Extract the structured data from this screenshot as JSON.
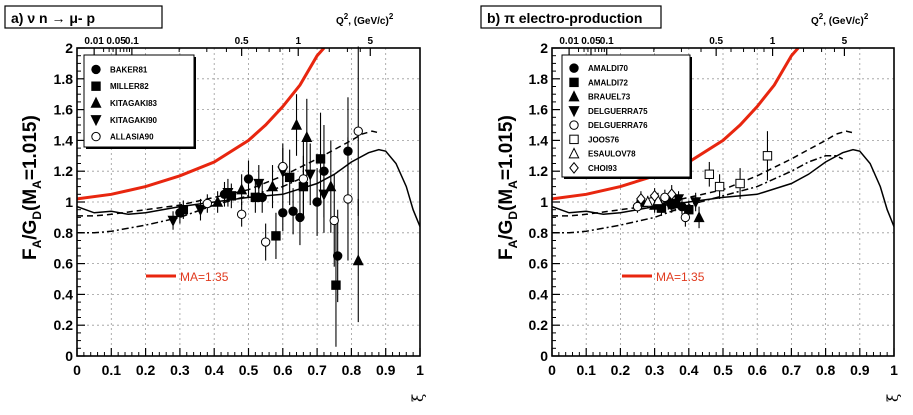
{
  "figure": {
    "colors": {
      "axis": "#000000",
      "grid": "#9a9a9a",
      "red_curve": "#e8260f",
      "ma_text": "#e03a1e"
    }
  },
  "chart_data": [
    {
      "type": "scatter",
      "panel": "a",
      "title": "a) ν n → μ- p",
      "ylabel": "F_A/G_D(M_A=1.015)",
      "ylabel_parts": {
        "main": "F",
        "sub1": "A",
        "mid": "/G",
        "sub2": "D",
        "open": "(M",
        "sub3": "A",
        "close": "=1.015)"
      },
      "xlabel": "ξ",
      "top_axis_label": {
        "text": "Q",
        "sup1": "2",
        "units": ", (GeV/c)",
        "sup2": "2"
      },
      "xlim": [
        0,
        1
      ],
      "ylim": [
        0,
        2
      ],
      "x_ticks": [
        "0",
        "0.1",
        "0.2",
        "0.3",
        "0.4",
        "0.5",
        "0.6",
        "0.7",
        "0.8",
        "0.9",
        "1"
      ],
      "y_ticks": [
        "0",
        "0.2",
        "0.4",
        "0.6",
        "0.8",
        "1",
        "1.2",
        "1.4",
        "1.6",
        "1.8",
        "2"
      ],
      "top_ticks": [
        {
          "label": "0.01",
          "xi": 0.05
        },
        {
          "label": "0.05",
          "xi": 0.114
        },
        {
          "label": "0.1",
          "xi": 0.16
        },
        {
          "label": "0.5",
          "xi": 0.48
        },
        {
          "label": "1",
          "xi": 0.645
        },
        {
          "label": "5",
          "xi": 0.855
        }
      ],
      "ma_annotation": "MA=1.35",
      "curves": {
        "red": [
          [
            0,
            1.02
          ],
          [
            0.1,
            1.05
          ],
          [
            0.2,
            1.1
          ],
          [
            0.3,
            1.17
          ],
          [
            0.4,
            1.26
          ],
          [
            0.5,
            1.4
          ],
          [
            0.55,
            1.5
          ],
          [
            0.6,
            1.62
          ],
          [
            0.65,
            1.76
          ],
          [
            0.7,
            1.95
          ],
          [
            0.72,
            2.0
          ]
        ],
        "solid": [
          [
            0,
            0.97
          ],
          [
            0.05,
            0.93
          ],
          [
            0.1,
            0.94
          ],
          [
            0.15,
            0.92
          ],
          [
            0.2,
            0.93
          ],
          [
            0.3,
            0.97
          ],
          [
            0.4,
            1.0
          ],
          [
            0.5,
            1.03
          ],
          [
            0.6,
            1.05
          ],
          [
            0.7,
            1.12
          ],
          [
            0.75,
            1.18
          ],
          [
            0.8,
            1.26
          ],
          [
            0.85,
            1.32
          ],
          [
            0.88,
            1.34
          ],
          [
            0.9,
            1.33
          ],
          [
            0.93,
            1.25
          ],
          [
            0.96,
            1.1
          ],
          [
            0.98,
            0.95
          ],
          [
            1.0,
            0.84
          ]
        ],
        "dashed": [
          [
            0,
            0.91
          ],
          [
            0.05,
            0.91
          ],
          [
            0.1,
            0.92
          ],
          [
            0.2,
            0.95
          ],
          [
            0.3,
            0.98
          ],
          [
            0.4,
            1.03
          ],
          [
            0.5,
            1.08
          ],
          [
            0.6,
            1.17
          ],
          [
            0.7,
            1.28
          ],
          [
            0.75,
            1.34
          ],
          [
            0.8,
            1.4
          ],
          [
            0.83,
            1.44
          ],
          [
            0.86,
            1.46
          ],
          [
            0.88,
            1.45
          ]
        ],
        "dashdot": [
          [
            0,
            0.8
          ],
          [
            0.05,
            0.8
          ],
          [
            0.1,
            0.81
          ],
          [
            0.2,
            0.85
          ],
          [
            0.3,
            0.9
          ],
          [
            0.4,
            0.98
          ],
          [
            0.5,
            1.04
          ],
          [
            0.6,
            1.1
          ],
          [
            0.65,
            1.15
          ]
        ]
      },
      "legend": [
        {
          "label": "BAKER81",
          "marker": "circle"
        },
        {
          "label": "MILLER82",
          "marker": "square"
        },
        {
          "label": "KITAGAKI83",
          "marker": "triangle-up"
        },
        {
          "label": "KITAGAKI90",
          "marker": "triangle-down"
        },
        {
          "label": "ALLASIA90",
          "marker": "circle-open"
        }
      ],
      "series": [
        {
          "name": "BAKER81",
          "marker": "circle",
          "points": [
            {
              "x": 0.3,
              "y": 0.93,
              "err": 0.07
            },
            {
              "x": 0.43,
              "y": 1.05,
              "err": 0.08
            },
            {
              "x": 0.5,
              "y": 1.15,
              "err": 0.12
            },
            {
              "x": 0.54,
              "y": 1.03,
              "err": 0.1
            },
            {
              "x": 0.6,
              "y": 0.93,
              "err": 0.12
            },
            {
              "x": 0.63,
              "y": 0.94,
              "err": 0.15
            },
            {
              "x": 0.65,
              "y": 0.9,
              "err": 0.18
            },
            {
              "x": 0.7,
              "y": 1.0,
              "err": 0.22
            },
            {
              "x": 0.72,
              "y": 1.2,
              "err": 0.3
            },
            {
              "x": 0.76,
              "y": 0.65,
              "err": 0.3
            },
            {
              "x": 0.79,
              "y": 1.33,
              "err": 0.35
            }
          ]
        },
        {
          "name": "MILLER82",
          "marker": "square",
          "points": [
            {
              "x": 0.31,
              "y": 0.95,
              "err": 0.06
            },
            {
              "x": 0.45,
              "y": 1.04,
              "err": 0.08
            },
            {
              "x": 0.52,
              "y": 1.03,
              "err": 0.1
            },
            {
              "x": 0.58,
              "y": 0.78,
              "err": 0.15
            },
            {
              "x": 0.62,
              "y": 1.16,
              "err": 0.18
            },
            {
              "x": 0.66,
              "y": 1.1,
              "err": 0.2
            },
            {
              "x": 0.71,
              "y": 1.28,
              "err": 0.3
            },
            {
              "x": 0.755,
              "y": 0.46,
              "err": 0.4
            }
          ]
        },
        {
          "name": "KITAGAKI83",
          "marker": "triangle-up",
          "points": [
            {
              "x": 0.41,
              "y": 1.0,
              "err": 0.07
            },
            {
              "x": 0.48,
              "y": 1.08,
              "err": 0.1
            },
            {
              "x": 0.57,
              "y": 1.1,
              "err": 0.14
            },
            {
              "x": 0.64,
              "y": 1.5,
              "err": 0.2
            },
            {
              "x": 0.67,
              "y": 1.42,
              "err": 0.25
            },
            {
              "x": 0.74,
              "y": 1.1,
              "err": 0.3
            },
            {
              "x": 0.82,
              "y": 0.62,
              "err": 0.4
            }
          ]
        },
        {
          "name": "KITAGAKI90",
          "marker": "triangle-down",
          "points": [
            {
              "x": 0.28,
              "y": 0.88,
              "err": 0.06
            },
            {
              "x": 0.36,
              "y": 0.95,
              "err": 0.07
            },
            {
              "x": 0.44,
              "y": 1.06,
              "err": 0.09
            },
            {
              "x": 0.53,
              "y": 1.12,
              "err": 0.12
            },
            {
              "x": 0.6,
              "y": 1.2,
              "err": 0.15
            },
            {
              "x": 0.68,
              "y": 1.18,
              "err": 0.2
            },
            {
              "x": 0.72,
              "y": 1.05,
              "err": 0.25
            }
          ]
        },
        {
          "name": "ALLASIA90",
          "marker": "circle-open",
          "points": [
            {
              "x": 0.38,
              "y": 0.99,
              "err": 0.06
            },
            {
              "x": 0.48,
              "y": 0.92,
              "err": 0.08
            },
            {
              "x": 0.55,
              "y": 0.74,
              "err": 0.12
            },
            {
              "x": 0.6,
              "y": 1.23,
              "err": 0.15
            },
            {
              "x": 0.66,
              "y": 1.15,
              "err": 0.25
            },
            {
              "x": 0.75,
              "y": 0.88,
              "err": 0.3
            },
            {
              "x": 0.79,
              "y": 1.02,
              "err": 0.4
            },
            {
              "x": 0.82,
              "y": 1.46,
              "err": 0.55
            }
          ]
        }
      ]
    },
    {
      "type": "scatter",
      "panel": "b",
      "title": "b) π electro-production",
      "ylabel": "F_A/G_D(M_A=1.015)",
      "ylabel_parts": {
        "main": "F",
        "sub1": "A",
        "mid": "/G",
        "sub2": "D",
        "open": "(M",
        "sub3": "A",
        "close": "=1.015)"
      },
      "xlabel": "ξ",
      "top_axis_label": {
        "text": "Q",
        "sup1": "2",
        "units": ", (GeV/c)",
        "sup2": "2"
      },
      "xlim": [
        0,
        1
      ],
      "ylim": [
        0,
        2
      ],
      "x_ticks": [
        "0",
        "0.1",
        "0.2",
        "0.3",
        "0.4",
        "0.5",
        "0.6",
        "0.7",
        "0.8",
        "0.9",
        "1"
      ],
      "y_ticks": [
        "0",
        "0.2",
        "0.4",
        "0.6",
        "0.8",
        "1",
        "1.2",
        "1.4",
        "1.6",
        "1.8",
        "2"
      ],
      "top_ticks": [
        {
          "label": "0.01",
          "xi": 0.05
        },
        {
          "label": "0.05",
          "xi": 0.114
        },
        {
          "label": "0.1",
          "xi": 0.16
        },
        {
          "label": "0.5",
          "xi": 0.48
        },
        {
          "label": "1",
          "xi": 0.645
        },
        {
          "label": "5",
          "xi": 0.855
        }
      ],
      "ma_annotation": "MA=1.35",
      "curves": {
        "red": [
          [
            0,
            1.02
          ],
          [
            0.1,
            1.05
          ],
          [
            0.2,
            1.1
          ],
          [
            0.3,
            1.17
          ],
          [
            0.4,
            1.26
          ],
          [
            0.5,
            1.4
          ],
          [
            0.55,
            1.5
          ],
          [
            0.6,
            1.62
          ],
          [
            0.65,
            1.76
          ],
          [
            0.7,
            1.95
          ],
          [
            0.72,
            2.0
          ]
        ],
        "solid": [
          [
            0,
            0.97
          ],
          [
            0.05,
            0.93
          ],
          [
            0.1,
            0.94
          ],
          [
            0.15,
            0.92
          ],
          [
            0.2,
            0.93
          ],
          [
            0.3,
            0.97
          ],
          [
            0.4,
            1.0
          ],
          [
            0.5,
            1.03
          ],
          [
            0.6,
            1.05
          ],
          [
            0.7,
            1.12
          ],
          [
            0.75,
            1.18
          ],
          [
            0.8,
            1.26
          ],
          [
            0.85,
            1.32
          ],
          [
            0.88,
            1.34
          ],
          [
            0.9,
            1.33
          ],
          [
            0.93,
            1.25
          ],
          [
            0.96,
            1.1
          ],
          [
            0.98,
            0.95
          ],
          [
            1.0,
            0.84
          ]
        ],
        "dashed": [
          [
            0,
            0.91
          ],
          [
            0.05,
            0.91
          ],
          [
            0.1,
            0.92
          ],
          [
            0.2,
            0.95
          ],
          [
            0.3,
            0.98
          ],
          [
            0.4,
            1.03
          ],
          [
            0.5,
            1.08
          ],
          [
            0.6,
            1.17
          ],
          [
            0.7,
            1.28
          ],
          [
            0.75,
            1.34
          ],
          [
            0.8,
            1.4
          ],
          [
            0.83,
            1.44
          ],
          [
            0.86,
            1.46
          ],
          [
            0.88,
            1.45
          ]
        ],
        "dashdot": [
          [
            0,
            0.8
          ],
          [
            0.05,
            0.8
          ],
          [
            0.1,
            0.81
          ],
          [
            0.2,
            0.85
          ],
          [
            0.3,
            0.9
          ],
          [
            0.4,
            0.98
          ],
          [
            0.5,
            1.04
          ],
          [
            0.6,
            1.1
          ],
          [
            0.7,
            1.2
          ],
          [
            0.75,
            1.26
          ],
          [
            0.8,
            1.3
          ],
          [
            0.83,
            1.3
          ],
          [
            0.85,
            1.28
          ]
        ]
      },
      "legend": [
        {
          "label": "AMALDI70",
          "marker": "circle"
        },
        {
          "label": "AMALDI72",
          "marker": "square"
        },
        {
          "label": "BRAUEL73",
          "marker": "triangle-up"
        },
        {
          "label": "DELGUERRA75",
          "marker": "triangle-down"
        },
        {
          "label": "DELGUERRA76",
          "marker": "circle-open"
        },
        {
          "label": "JOOS76",
          "marker": "square-open"
        },
        {
          "label": "ESAULOV78",
          "marker": "triangle-open"
        },
        {
          "label": "CHOI93",
          "marker": "diamond-open"
        }
      ],
      "series": [
        {
          "name": "AMALDI70",
          "marker": "circle",
          "points": [
            {
              "x": 0.26,
              "y": 1.0,
              "err": 0.05
            },
            {
              "x": 0.3,
              "y": 0.99,
              "err": 0.05
            },
            {
              "x": 0.35,
              "y": 0.98,
              "err": 0.05
            },
            {
              "x": 0.38,
              "y": 0.97,
              "err": 0.05
            }
          ]
        },
        {
          "name": "AMALDI72",
          "marker": "square",
          "points": [
            {
              "x": 0.32,
              "y": 0.96,
              "err": 0.05
            },
            {
              "x": 0.36,
              "y": 0.99,
              "err": 0.05
            },
            {
              "x": 0.4,
              "y": 0.95,
              "err": 0.06
            }
          ]
        },
        {
          "name": "BRAUEL73",
          "marker": "triangle-up",
          "points": [
            {
              "x": 0.3,
              "y": 0.98,
              "err": 0.05
            },
            {
              "x": 0.43,
              "y": 0.9,
              "err": 0.07
            }
          ]
        },
        {
          "name": "DELGUERRA75",
          "marker": "triangle-down",
          "points": [
            {
              "x": 0.34,
              "y": 1.0,
              "err": 0.05
            },
            {
              "x": 0.37,
              "y": 1.02,
              "err": 0.05
            },
            {
              "x": 0.42,
              "y": 1.0,
              "err": 0.06
            }
          ]
        },
        {
          "name": "DELGUERRA76",
          "marker": "circle-open",
          "points": [
            {
              "x": 0.25,
              "y": 0.97,
              "err": 0.04
            },
            {
              "x": 0.29,
              "y": 1.0,
              "err": 0.05
            },
            {
              "x": 0.33,
              "y": 1.03,
              "err": 0.05
            },
            {
              "x": 0.39,
              "y": 0.9,
              "err": 0.06
            }
          ]
        },
        {
          "name": "JOOS76",
          "marker": "square-open",
          "points": [
            {
              "x": 0.46,
              "y": 1.18,
              "err": 0.08
            },
            {
              "x": 0.49,
              "y": 1.1,
              "err": 0.08
            },
            {
              "x": 0.55,
              "y": 1.12,
              "err": 0.1
            },
            {
              "x": 0.63,
              "y": 1.3,
              "err": 0.16
            }
          ]
        },
        {
          "name": "ESAULOV78",
          "marker": "triangle-open",
          "points": [
            {
              "x": 0.28,
              "y": 1.0,
              "err": 0.04
            },
            {
              "x": 0.31,
              "y": 1.01,
              "err": 0.05
            }
          ]
        },
        {
          "name": "CHOI93",
          "marker": "diamond-open",
          "points": [
            {
              "x": 0.26,
              "y": 1.02,
              "err": 0.05
            },
            {
              "x": 0.3,
              "y": 1.04,
              "err": 0.05
            },
            {
              "x": 0.35,
              "y": 1.05,
              "err": 0.06
            }
          ]
        }
      ]
    }
  ]
}
